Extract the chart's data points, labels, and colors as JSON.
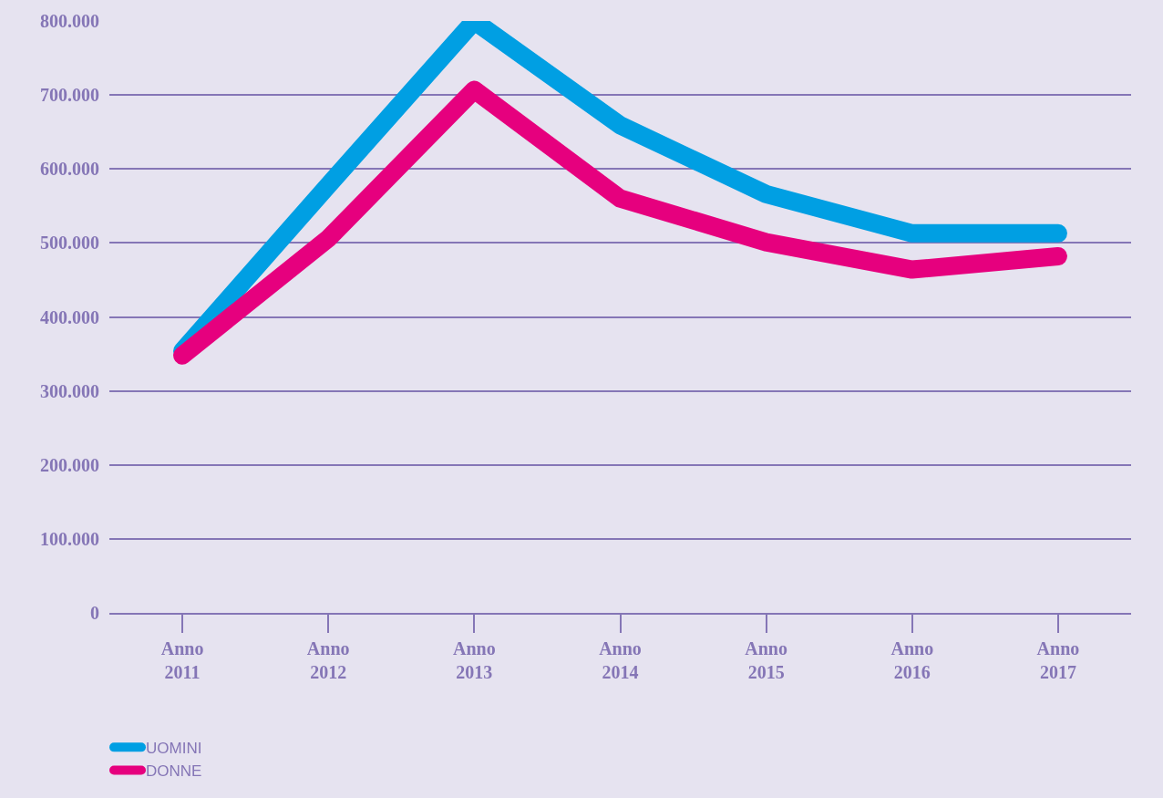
{
  "chart_data": {
    "type": "line",
    "categories": [
      "Anno\n2011",
      "Anno\n2012",
      "Anno\n2013",
      "Anno\n2014",
      "Anno\n2015",
      "Anno\n2016",
      "Anno\n2017"
    ],
    "series": [
      {
        "name": "UOMINI",
        "color": "#009fe3",
        "values": [
          354000,
          578000,
          800000,
          659000,
          566000,
          513000,
          513000
        ]
      },
      {
        "name": "DONNE",
        "color": "#e6007e",
        "values": [
          348000,
          506000,
          707000,
          560000,
          501000,
          464000,
          482000
        ]
      }
    ],
    "ylim": [
      0,
      800000
    ],
    "yticks": [
      {
        "value": 0,
        "label": "0"
      },
      {
        "value": 100000,
        "label": "100.000"
      },
      {
        "value": 200000,
        "label": "200.000"
      },
      {
        "value": 300000,
        "label": "300.000"
      },
      {
        "value": 400000,
        "label": "400.000"
      },
      {
        "value": 500000,
        "label": "500.000"
      },
      {
        "value": 600000,
        "label": "600.000"
      },
      {
        "value": 700000,
        "label": "700.000"
      },
      {
        "value": 800000,
        "label": "800.000"
      }
    ],
    "grid": "y",
    "legend": "bottom left",
    "marker": "none",
    "line_style": "solid"
  }
}
